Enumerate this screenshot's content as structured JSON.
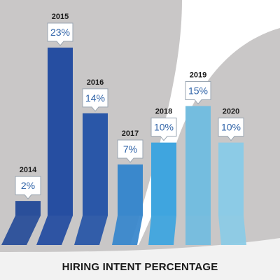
{
  "chart_data": {
    "type": "bar",
    "title": "HIRING INTENT PERCENTAGE",
    "categories": [
      "2014",
      "2015",
      "2016",
      "2017",
      "2018",
      "2019",
      "2020"
    ],
    "values": [
      2,
      23,
      14,
      7,
      10,
      15,
      10
    ],
    "value_labels": [
      "2%",
      "23%",
      "14%",
      "7%",
      "10%",
      "15%",
      "10%"
    ],
    "ylim": [
      0,
      25
    ],
    "grid": false,
    "legend": "none",
    "colors": {
      "bars": [
        "#2a4f9a",
        "#264ea1",
        "#2a57a8",
        "#3a88cc",
        "#3fa5df",
        "#74bddf",
        "#8ccbe6"
      ],
      "background_gray": "#c9c7c7",
      "background_light": "#f2f2f2",
      "swoosh": "#ffffff",
      "label_box_border": "#9aa6b2",
      "value_text": "#2f63a8"
    }
  }
}
